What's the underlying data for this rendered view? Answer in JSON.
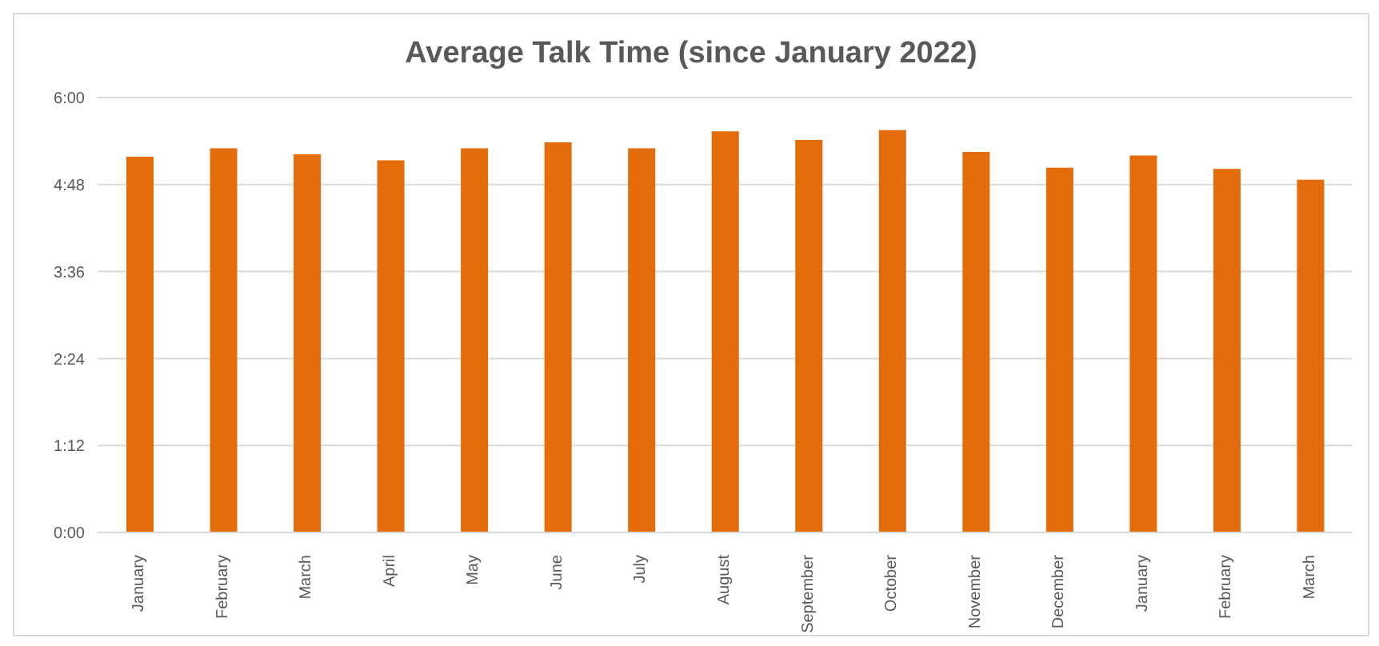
{
  "chart_data": {
    "type": "bar",
    "title": "Average Talk Time (since January 2022)",
    "categories": [
      "January",
      "February",
      "March",
      "April",
      "May",
      "June",
      "July",
      "August",
      "September",
      "October",
      "November",
      "December",
      "January",
      "February",
      "March"
    ],
    "values": [
      311,
      318,
      313,
      308,
      318,
      323,
      318,
      332,
      325,
      333,
      315,
      302,
      312,
      301,
      292
    ],
    "color": "#e46c0a",
    "ylim": [
      0,
      360
    ],
    "yticks": [
      {
        "value": 0,
        "label": "0:00"
      },
      {
        "value": 72,
        "label": "1:12"
      },
      {
        "value": 144,
        "label": "2:24"
      },
      {
        "value": 216,
        "label": "3:36"
      },
      {
        "value": 288,
        "label": "4:48"
      },
      {
        "value": 360,
        "label": "6:00"
      }
    ],
    "grid": "y"
  }
}
